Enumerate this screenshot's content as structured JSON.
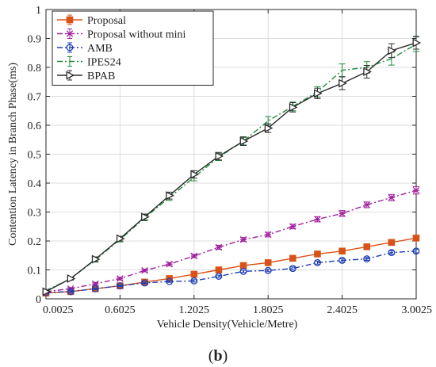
{
  "chart_data": {
    "type": "line",
    "xlabel": "Vehicle Density(Vehicle/Metre)",
    "ylabel": "Contention Latency in Branch Phase(ms)",
    "xlim": [
      0.0025,
      3.0025
    ],
    "ylim": [
      0,
      1
    ],
    "xticks": [
      "0.0025",
      "0.6025",
      "1.2025",
      "1.8025",
      "2.4025",
      "3.0025"
    ],
    "yticks": [
      "0",
      "0.1",
      "0.2",
      "0.3",
      "0.4",
      "0.5",
      "0.6",
      "0.7",
      "0.8",
      "0.9",
      "1"
    ],
    "grid": true,
    "legend_position": "top-left",
    "x": [
      0.0025,
      0.2025,
      0.4025,
      0.6025,
      0.8025,
      1.0025,
      1.2025,
      1.4025,
      1.6025,
      1.8025,
      2.0025,
      2.2025,
      2.4025,
      2.6025,
      2.8025,
      3.0025
    ],
    "series": [
      {
        "name": "Proposal",
        "color": "#d95319",
        "marker": "square",
        "dash": "solid",
        "values": [
          0.02,
          0.025,
          0.035,
          0.045,
          0.058,
          0.07,
          0.085,
          0.1,
          0.115,
          0.125,
          0.14,
          0.155,
          0.165,
          0.18,
          0.195,
          0.21
        ],
        "errors": [
          0.003,
          0.003,
          0.003,
          0.003,
          0.003,
          0.003,
          0.003,
          0.004,
          0.004,
          0.004,
          0.004,
          0.004,
          0.004,
          0.005,
          0.005,
          0.006
        ]
      },
      {
        "name": "Proposal without mini",
        "color": "#a2229e",
        "marker": "x",
        "dash": "dashdot",
        "values": [
          0.025,
          0.035,
          0.052,
          0.07,
          0.098,
          0.12,
          0.148,
          0.178,
          0.205,
          0.222,
          0.25,
          0.275,
          0.295,
          0.325,
          0.35,
          0.375
        ],
        "errors": [
          0.003,
          0.004,
          0.005,
          0.005,
          0.005,
          0.006,
          0.006,
          0.007,
          0.007,
          0.008,
          0.008,
          0.009,
          0.01,
          0.01,
          0.011,
          0.013
        ]
      },
      {
        "name": "AMB",
        "color": "#1f3fb5",
        "marker": "circle",
        "dash": "dashdot",
        "values": [
          0.022,
          0.025,
          0.035,
          0.045,
          0.055,
          0.06,
          0.062,
          0.078,
          0.095,
          0.098,
          0.105,
          0.125,
          0.133,
          0.138,
          0.16,
          0.165
        ],
        "errors": [
          0.003,
          0.003,
          0.003,
          0.003,
          0.003,
          0.003,
          0.004,
          0.004,
          0.004,
          0.004,
          0.005,
          0.005,
          0.005,
          0.005,
          0.006,
          0.006
        ]
      },
      {
        "name": "IPES24",
        "color": "#1e8a3c",
        "marker": "none",
        "dash": "dashdot",
        "values": [
          0.028,
          0.07,
          0.135,
          0.205,
          0.28,
          0.35,
          0.42,
          0.49,
          0.545,
          0.615,
          0.665,
          0.715,
          0.79,
          0.8,
          0.83,
          0.88
        ],
        "errors": [
          0.004,
          0.005,
          0.008,
          0.008,
          0.01,
          0.01,
          0.012,
          0.012,
          0.013,
          0.015,
          0.015,
          0.018,
          0.022,
          0.02,
          0.022,
          0.025
        ]
      },
      {
        "name": "BPAB",
        "color": "#2b2b2b",
        "marker": "triangle-right",
        "dash": "solid",
        "values": [
          0.025,
          0.07,
          0.137,
          0.208,
          0.283,
          0.357,
          0.43,
          0.493,
          0.545,
          0.59,
          0.662,
          0.71,
          0.745,
          0.785,
          0.858,
          0.885
        ],
        "errors": [
          0.004,
          0.005,
          0.008,
          0.008,
          0.01,
          0.012,
          0.013,
          0.013,
          0.015,
          0.015,
          0.016,
          0.018,
          0.022,
          0.022,
          0.024,
          0.022
        ]
      }
    ]
  },
  "panel_label": {
    "open": "(",
    "letter": "b",
    "close": ")"
  }
}
